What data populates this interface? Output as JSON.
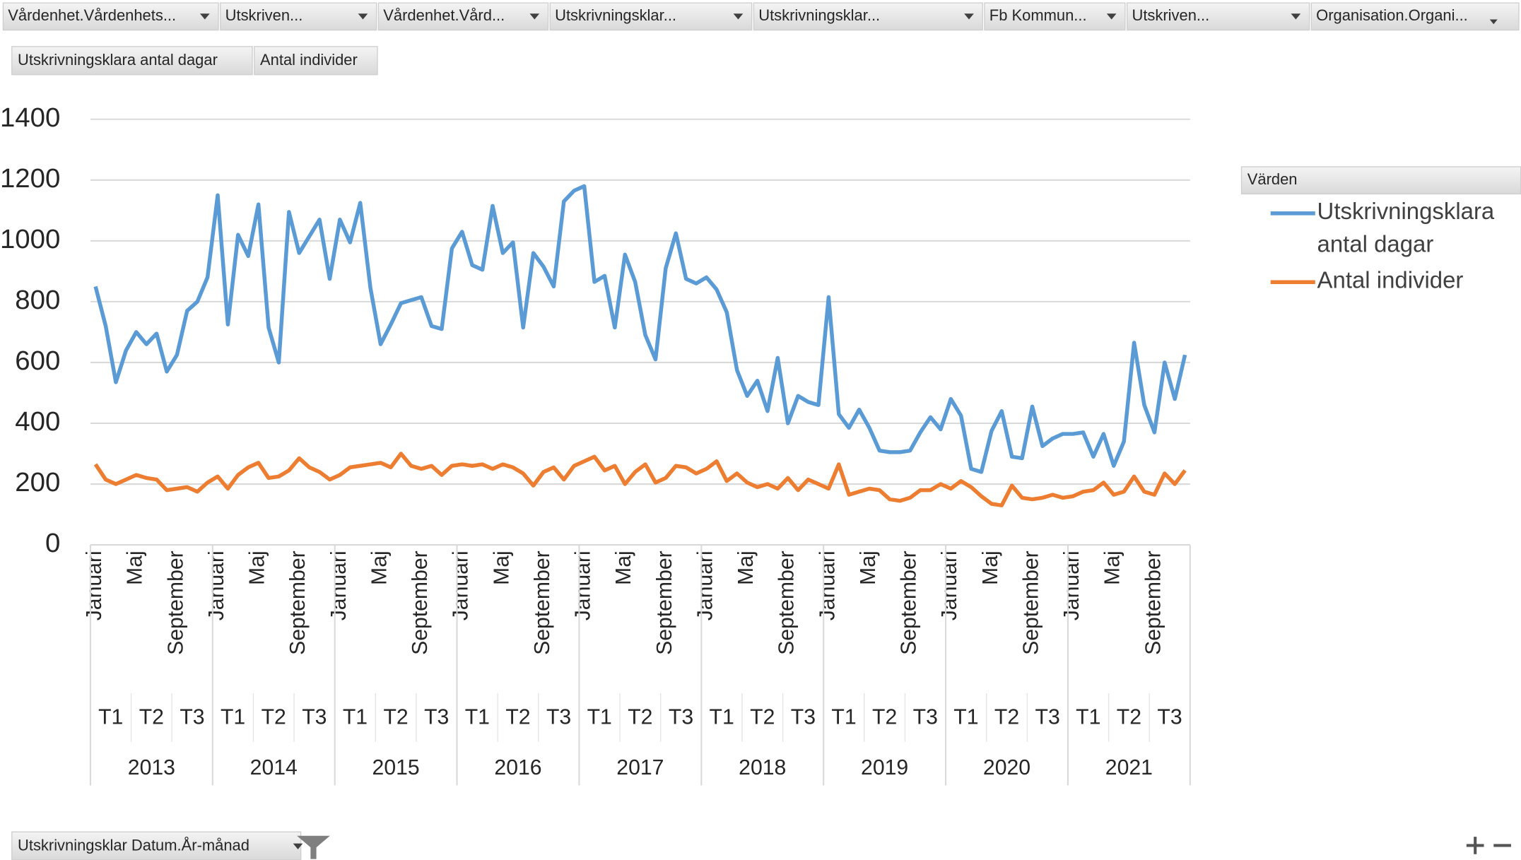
{
  "filters": [
    "Vårdenhet.Vårdenhets...",
    "Utskriven...",
    "Vårdenhet.Vård...",
    "Utskrivningsklar...",
    "Utskrivningsklar...",
    "Fb Kommun...",
    "Utskriven...",
    "Organisation.Organi..."
  ],
  "value_fields": [
    "Utskrivningsklara antal dagar",
    "Antal individer"
  ],
  "row_field": "Utskrivningsklar Datum.År-månad",
  "chart_data": {
    "type": "line",
    "legend_title": "Värden",
    "legend": "right",
    "grid": true,
    "ylim": [
      0,
      1400
    ],
    "yticks": [
      0,
      200,
      400,
      600,
      800,
      1000,
      1200,
      1400
    ],
    "categories": [
      "Januari",
      null,
      null,
      null,
      "Maj",
      null,
      null,
      null,
      "September",
      null,
      null,
      null,
      "Januari",
      null,
      null,
      null,
      "Maj",
      null,
      null,
      null,
      "September",
      null,
      null,
      null,
      "Januari",
      null,
      null,
      null,
      "Maj",
      null,
      null,
      null,
      "September",
      null,
      null,
      null,
      "Januari",
      null,
      null,
      null,
      "Maj",
      null,
      null,
      null,
      "September",
      null,
      null,
      null,
      "Januari",
      null,
      null,
      null,
      "Maj",
      null,
      null,
      null,
      "September",
      null,
      null,
      null,
      "Januari",
      null,
      null,
      null,
      "Maj",
      null,
      null,
      null,
      "September",
      null,
      null,
      null,
      "Januari",
      null,
      null,
      null,
      "Maj",
      null,
      null,
      null,
      "September",
      null,
      null,
      null,
      "Januari",
      null,
      null,
      null,
      "Maj",
      null,
      null,
      null,
      "September",
      null,
      null,
      null,
      "Januari",
      null,
      null,
      null,
      "Maj",
      null,
      null,
      null,
      "September",
      null,
      null,
      null
    ],
    "tertials": [
      "T1",
      "T2",
      "T3",
      "T1",
      "T2",
      "T3",
      "T1",
      "T2",
      "T3",
      "T1",
      "T2",
      "T3",
      "T1",
      "T2",
      "T3",
      "T1",
      "T2",
      "T3",
      "T1",
      "T2",
      "T3",
      "T1",
      "T2",
      "T3",
      "T1",
      "T2",
      "T3"
    ],
    "years": [
      "2013",
      "2014",
      "2015",
      "2016",
      "2017",
      "2018",
      "2019",
      "2020",
      "2021"
    ],
    "series": [
      {
        "name": "Utskrivningsklara antal dagar",
        "color": "#5b9bd5",
        "values": [
          850,
          720,
          535,
          640,
          700,
          660,
          695,
          570,
          625,
          770,
          800,
          880,
          1150,
          725,
          1020,
          950,
          1120,
          715,
          600,
          1095,
          960,
          1015,
          1070,
          875,
          1070,
          995,
          1125,
          845,
          660,
          725,
          795,
          805,
          815,
          720,
          710,
          975,
          1030,
          920,
          905,
          1115,
          960,
          995,
          715,
          960,
          915,
          850,
          1130,
          1165,
          1180,
          865,
          885,
          715,
          955,
          865,
          690,
          610,
          910,
          1025,
          875,
          860,
          880,
          840,
          765,
          575,
          490,
          540,
          440,
          615,
          400,
          490,
          470,
          460,
          815,
          430,
          385,
          445,
          385,
          310,
          305,
          305,
          310,
          370,
          420,
          380,
          480,
          425,
          250,
          240,
          375,
          440,
          290,
          285,
          455,
          325,
          350,
          365,
          365,
          370,
          290,
          365,
          260,
          340,
          665,
          460,
          370,
          600,
          480,
          625
        ]
      },
      {
        "name": "Antal individer",
        "color": "#ed7d31",
        "values": [
          265,
          215,
          200,
          215,
          230,
          220,
          215,
          180,
          185,
          190,
          175,
          205,
          225,
          185,
          230,
          255,
          270,
          220,
          225,
          245,
          285,
          255,
          240,
          215,
          230,
          255,
          260,
          265,
          270,
          255,
          300,
          260,
          250,
          260,
          230,
          260,
          265,
          260,
          265,
          250,
          265,
          255,
          235,
          195,
          240,
          255,
          215,
          260,
          275,
          290,
          245,
          260,
          200,
          240,
          265,
          205,
          220,
          260,
          255,
          235,
          250,
          275,
          210,
          235,
          205,
          190,
          200,
          185,
          220,
          180,
          215,
          200,
          185,
          265,
          165,
          175,
          185,
          180,
          150,
          145,
          155,
          180,
          180,
          200,
          185,
          210,
          190,
          160,
          135,
          130,
          195,
          155,
          150,
          155,
          165,
          155,
          160,
          175,
          180,
          205,
          165,
          175,
          225,
          175,
          165,
          235,
          200,
          245
        ]
      }
    ]
  }
}
